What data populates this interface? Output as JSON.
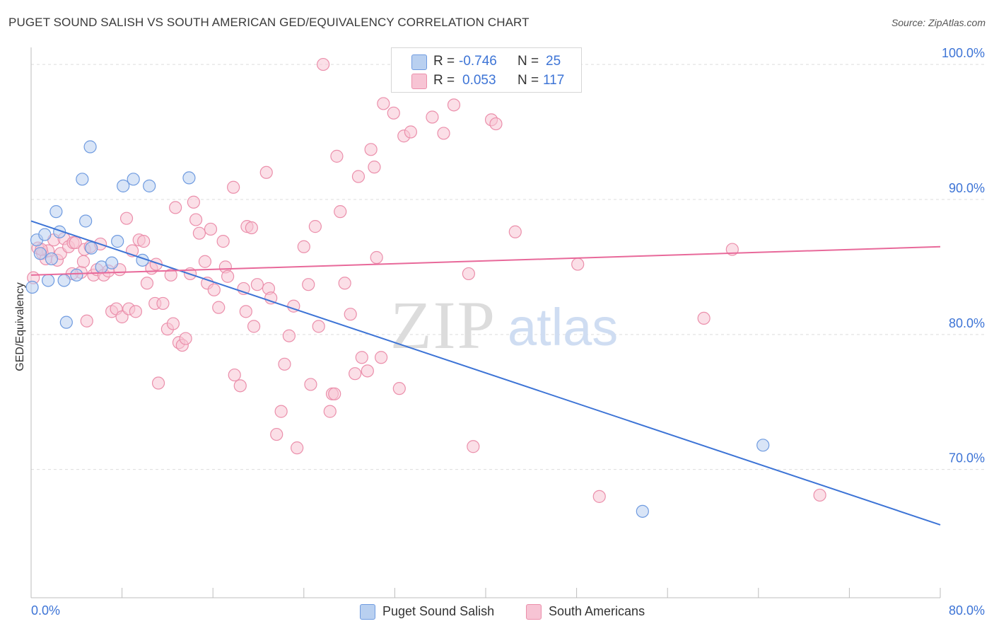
{
  "title": "PUGET SOUND SALISH VS SOUTH AMERICAN GED/EQUIVALENCY CORRELATION CHART",
  "source": "Source: ZipAtlas.com",
  "watermark": {
    "zip": "ZIP",
    "atlas": "atlas"
  },
  "legend": {
    "rows": [
      {
        "r_label": "R =",
        "r_value": "-0.746",
        "n_label": "N =",
        "n_value": "25"
      },
      {
        "r_label": "R =",
        "r_value": "0.053",
        "n_label": "N =",
        "n_value": "117"
      }
    ]
  },
  "bottom_legend": {
    "items": [
      "Puget Sound Salish",
      "South Americans"
    ]
  },
  "colors": {
    "blue_fill": "#b9d0f0",
    "blue_stroke": "#6f9be0",
    "blue_line": "#3d74d6",
    "pink_fill": "#f7c4d4",
    "pink_stroke": "#eb8fab",
    "pink_line": "#e8699a",
    "tick_label": "#3d74d6",
    "grid": "#dddddd"
  },
  "chart_data": {
    "type": "scatter",
    "title": "PUGET SOUND SALISH VS SOUTH AMERICAN GED/EQUIVALENCY CORRELATION CHART",
    "xlabel": "",
    "ylabel": "GED/Equivalency",
    "xlim": [
      0,
      80
    ],
    "ylim": [
      60.5,
      101
    ],
    "x_tick_labels": [
      "0.0%",
      "80.0%"
    ],
    "x_tick_values": [
      0,
      80
    ],
    "x_minor_ticks": [
      8,
      16,
      24,
      32,
      40,
      48,
      56,
      64,
      72,
      80
    ],
    "y_tick_labels": [
      "100.0%",
      "90.0%",
      "80.0%",
      "70.0%"
    ],
    "y_tick_values": [
      100,
      90,
      80,
      70
    ],
    "grid": true,
    "legend_position": "top-center",
    "series": [
      {
        "name": "Puget Sound Salish",
        "color": "#6f9be0",
        "trend": {
          "x": [
            0,
            80
          ],
          "y": [
            88.4,
            65.9
          ]
        },
        "points": [
          [
            0.1,
            83.5
          ],
          [
            0.5,
            87.0
          ],
          [
            0.8,
            86.0
          ],
          [
            1.2,
            87.4
          ],
          [
            1.5,
            84.0
          ],
          [
            1.8,
            85.6
          ],
          [
            2.2,
            89.1
          ],
          [
            2.5,
            87.6
          ],
          [
            2.9,
            84.0
          ],
          [
            3.1,
            80.9
          ],
          [
            4.0,
            84.4
          ],
          [
            4.5,
            91.5
          ],
          [
            4.8,
            88.4
          ],
          [
            5.3,
            86.4
          ],
          [
            5.2,
            93.9
          ],
          [
            6.2,
            85.0
          ],
          [
            7.1,
            85.3
          ],
          [
            7.6,
            86.9
          ],
          [
            8.1,
            91.0
          ],
          [
            9.0,
            91.5
          ],
          [
            10.4,
            91.0
          ],
          [
            13.9,
            91.6
          ],
          [
            9.8,
            85.5
          ],
          [
            53.8,
            66.9
          ],
          [
            64.4,
            71.8
          ]
        ]
      },
      {
        "name": "South Americans",
        "color": "#eb8fab",
        "trend": {
          "x": [
            0,
            80
          ],
          "y": [
            84.4,
            86.5
          ]
        },
        "points": [
          [
            0.2,
            84.2
          ],
          [
            0.6,
            86.4
          ],
          [
            1.0,
            86.0
          ],
          [
            1.3,
            85.6
          ],
          [
            1.5,
            86.2
          ],
          [
            2.0,
            87.0
          ],
          [
            2.3,
            85.5
          ],
          [
            2.6,
            86.0
          ],
          [
            2.9,
            87.1
          ],
          [
            3.3,
            86.5
          ],
          [
            3.7,
            86.8
          ],
          [
            3.9,
            86.8
          ],
          [
            4.4,
            84.6
          ],
          [
            4.6,
            85.4
          ],
          [
            4.7,
            86.3
          ],
          [
            4.9,
            81.0
          ],
          [
            5.2,
            86.5
          ],
          [
            5.5,
            84.4
          ],
          [
            5.8,
            84.8
          ],
          [
            6.1,
            86.7
          ],
          [
            6.4,
            84.4
          ],
          [
            6.8,
            84.7
          ],
          [
            7.1,
            81.7
          ],
          [
            7.5,
            81.9
          ],
          [
            7.8,
            84.8
          ],
          [
            8.0,
            81.3
          ],
          [
            8.4,
            88.6
          ],
          [
            8.6,
            81.9
          ],
          [
            8.9,
            86.2
          ],
          [
            9.2,
            81.7
          ],
          [
            9.5,
            87.0
          ],
          [
            9.9,
            86.9
          ],
          [
            10.2,
            83.8
          ],
          [
            10.6,
            84.9
          ],
          [
            10.9,
            82.3
          ],
          [
            11.0,
            85.2
          ],
          [
            11.2,
            76.4
          ],
          [
            11.6,
            82.3
          ],
          [
            12.0,
            80.4
          ],
          [
            12.3,
            84.4
          ],
          [
            12.5,
            80.8
          ],
          [
            12.7,
            89.4
          ],
          [
            13.0,
            79.4
          ],
          [
            13.3,
            79.2
          ],
          [
            13.6,
            79.7
          ],
          [
            14.0,
            84.5
          ],
          [
            14.3,
            89.8
          ],
          [
            14.5,
            88.5
          ],
          [
            14.8,
            87.5
          ],
          [
            15.3,
            85.4
          ],
          [
            15.5,
            83.8
          ],
          [
            15.8,
            87.8
          ],
          [
            16.1,
            83.3
          ],
          [
            16.5,
            82.0
          ],
          [
            16.9,
            86.9
          ],
          [
            17.1,
            85.0
          ],
          [
            17.3,
            84.3
          ],
          [
            17.8,
            90.9
          ],
          [
            17.9,
            77.0
          ],
          [
            18.4,
            76.2
          ],
          [
            18.7,
            83.4
          ],
          [
            18.9,
            81.7
          ],
          [
            19.0,
            88.0
          ],
          [
            19.4,
            87.9
          ],
          [
            19.6,
            80.6
          ],
          [
            19.9,
            83.7
          ],
          [
            20.7,
            92.0
          ],
          [
            20.9,
            83.4
          ],
          [
            21.1,
            82.7
          ],
          [
            21.6,
            72.6
          ],
          [
            22.0,
            74.3
          ],
          [
            22.3,
            77.8
          ],
          [
            22.7,
            79.9
          ],
          [
            23.1,
            82.1
          ],
          [
            23.4,
            71.6
          ],
          [
            24.0,
            86.5
          ],
          [
            24.4,
            83.7
          ],
          [
            24.6,
            76.3
          ],
          [
            25.0,
            88.0
          ],
          [
            25.3,
            80.6
          ],
          [
            25.7,
            100.0
          ],
          [
            26.3,
            74.3
          ],
          [
            26.5,
            75.6
          ],
          [
            26.7,
            75.6
          ],
          [
            26.9,
            93.2
          ],
          [
            27.2,
            89.1
          ],
          [
            27.6,
            83.8
          ],
          [
            28.1,
            81.5
          ],
          [
            28.5,
            77.1
          ],
          [
            28.8,
            91.7
          ],
          [
            29.1,
            78.3
          ],
          [
            29.6,
            77.3
          ],
          [
            29.9,
            93.7
          ],
          [
            30.2,
            92.4
          ],
          [
            30.4,
            85.7
          ],
          [
            30.8,
            78.3
          ],
          [
            31.0,
            97.1
          ],
          [
            31.9,
            96.4
          ],
          [
            32.4,
            76.0
          ],
          [
            32.8,
            94.7
          ],
          [
            33.4,
            95.0
          ],
          [
            34.0,
            100.0
          ],
          [
            35.3,
            96.1
          ],
          [
            36.3,
            94.9
          ],
          [
            37.2,
            97.0
          ],
          [
            38.5,
            84.5
          ],
          [
            38.9,
            71.7
          ],
          [
            40.5,
            95.9
          ],
          [
            40.9,
            95.6
          ],
          [
            42.6,
            87.6
          ],
          [
            48.1,
            85.2
          ],
          [
            50.0,
            68.0
          ],
          [
            59.2,
            81.2
          ],
          [
            61.7,
            86.3
          ],
          [
            69.4,
            68.1
          ],
          [
            0.9,
            86.3
          ],
          [
            3.6,
            84.5
          ]
        ]
      }
    ]
  }
}
